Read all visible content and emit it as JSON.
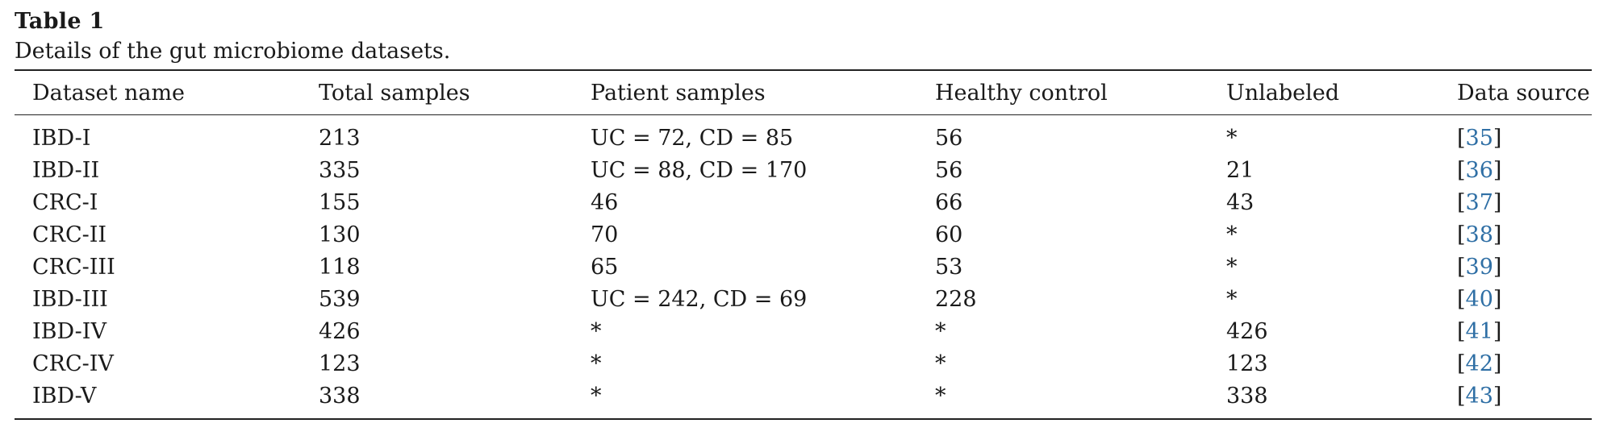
{
  "table": {
    "label": "Table 1",
    "caption": "Details of the gut microbiome datasets.",
    "headers": [
      "Dataset name",
      "Total samples",
      "Patient samples",
      "Healthy control",
      "Unlabeled",
      "Data source"
    ],
    "rows": [
      {
        "name": "IBD-I",
        "total": "213",
        "patient": "UC = 72, CD = 85",
        "healthy": "56",
        "unlabeled": "*",
        "ref": "35"
      },
      {
        "name": "IBD-II",
        "total": "335",
        "patient": "UC = 88, CD = 170",
        "healthy": "56",
        "unlabeled": "21",
        "ref": "36"
      },
      {
        "name": "CRC-I",
        "total": "155",
        "patient": "46",
        "healthy": "66",
        "unlabeled": "43",
        "ref": "37"
      },
      {
        "name": "CRC-II",
        "total": "130",
        "patient": "70",
        "healthy": "60",
        "unlabeled": "*",
        "ref": "38"
      },
      {
        "name": "CRC-III",
        "total": "118",
        "patient": "65",
        "healthy": "53",
        "unlabeled": "*",
        "ref": "39"
      },
      {
        "name": "IBD-III",
        "total": "539",
        "patient": "UC = 242, CD = 69",
        "healthy": "228",
        "unlabeled": "*",
        "ref": "40"
      },
      {
        "name": "IBD-IV",
        "total": "426",
        "patient": "*",
        "healthy": "*",
        "unlabeled": "426",
        "ref": "41"
      },
      {
        "name": "CRC-IV",
        "total": "123",
        "patient": "*",
        "healthy": "*",
        "unlabeled": "123",
        "ref": "42"
      },
      {
        "name": "IBD-V",
        "total": "338",
        "patient": "*",
        "healthy": "*",
        "unlabeled": "338",
        "ref": "43"
      }
    ],
    "colors": {
      "text": "#1a1a1a",
      "link": "#2f6fa5",
      "rule": "#222222"
    }
  }
}
